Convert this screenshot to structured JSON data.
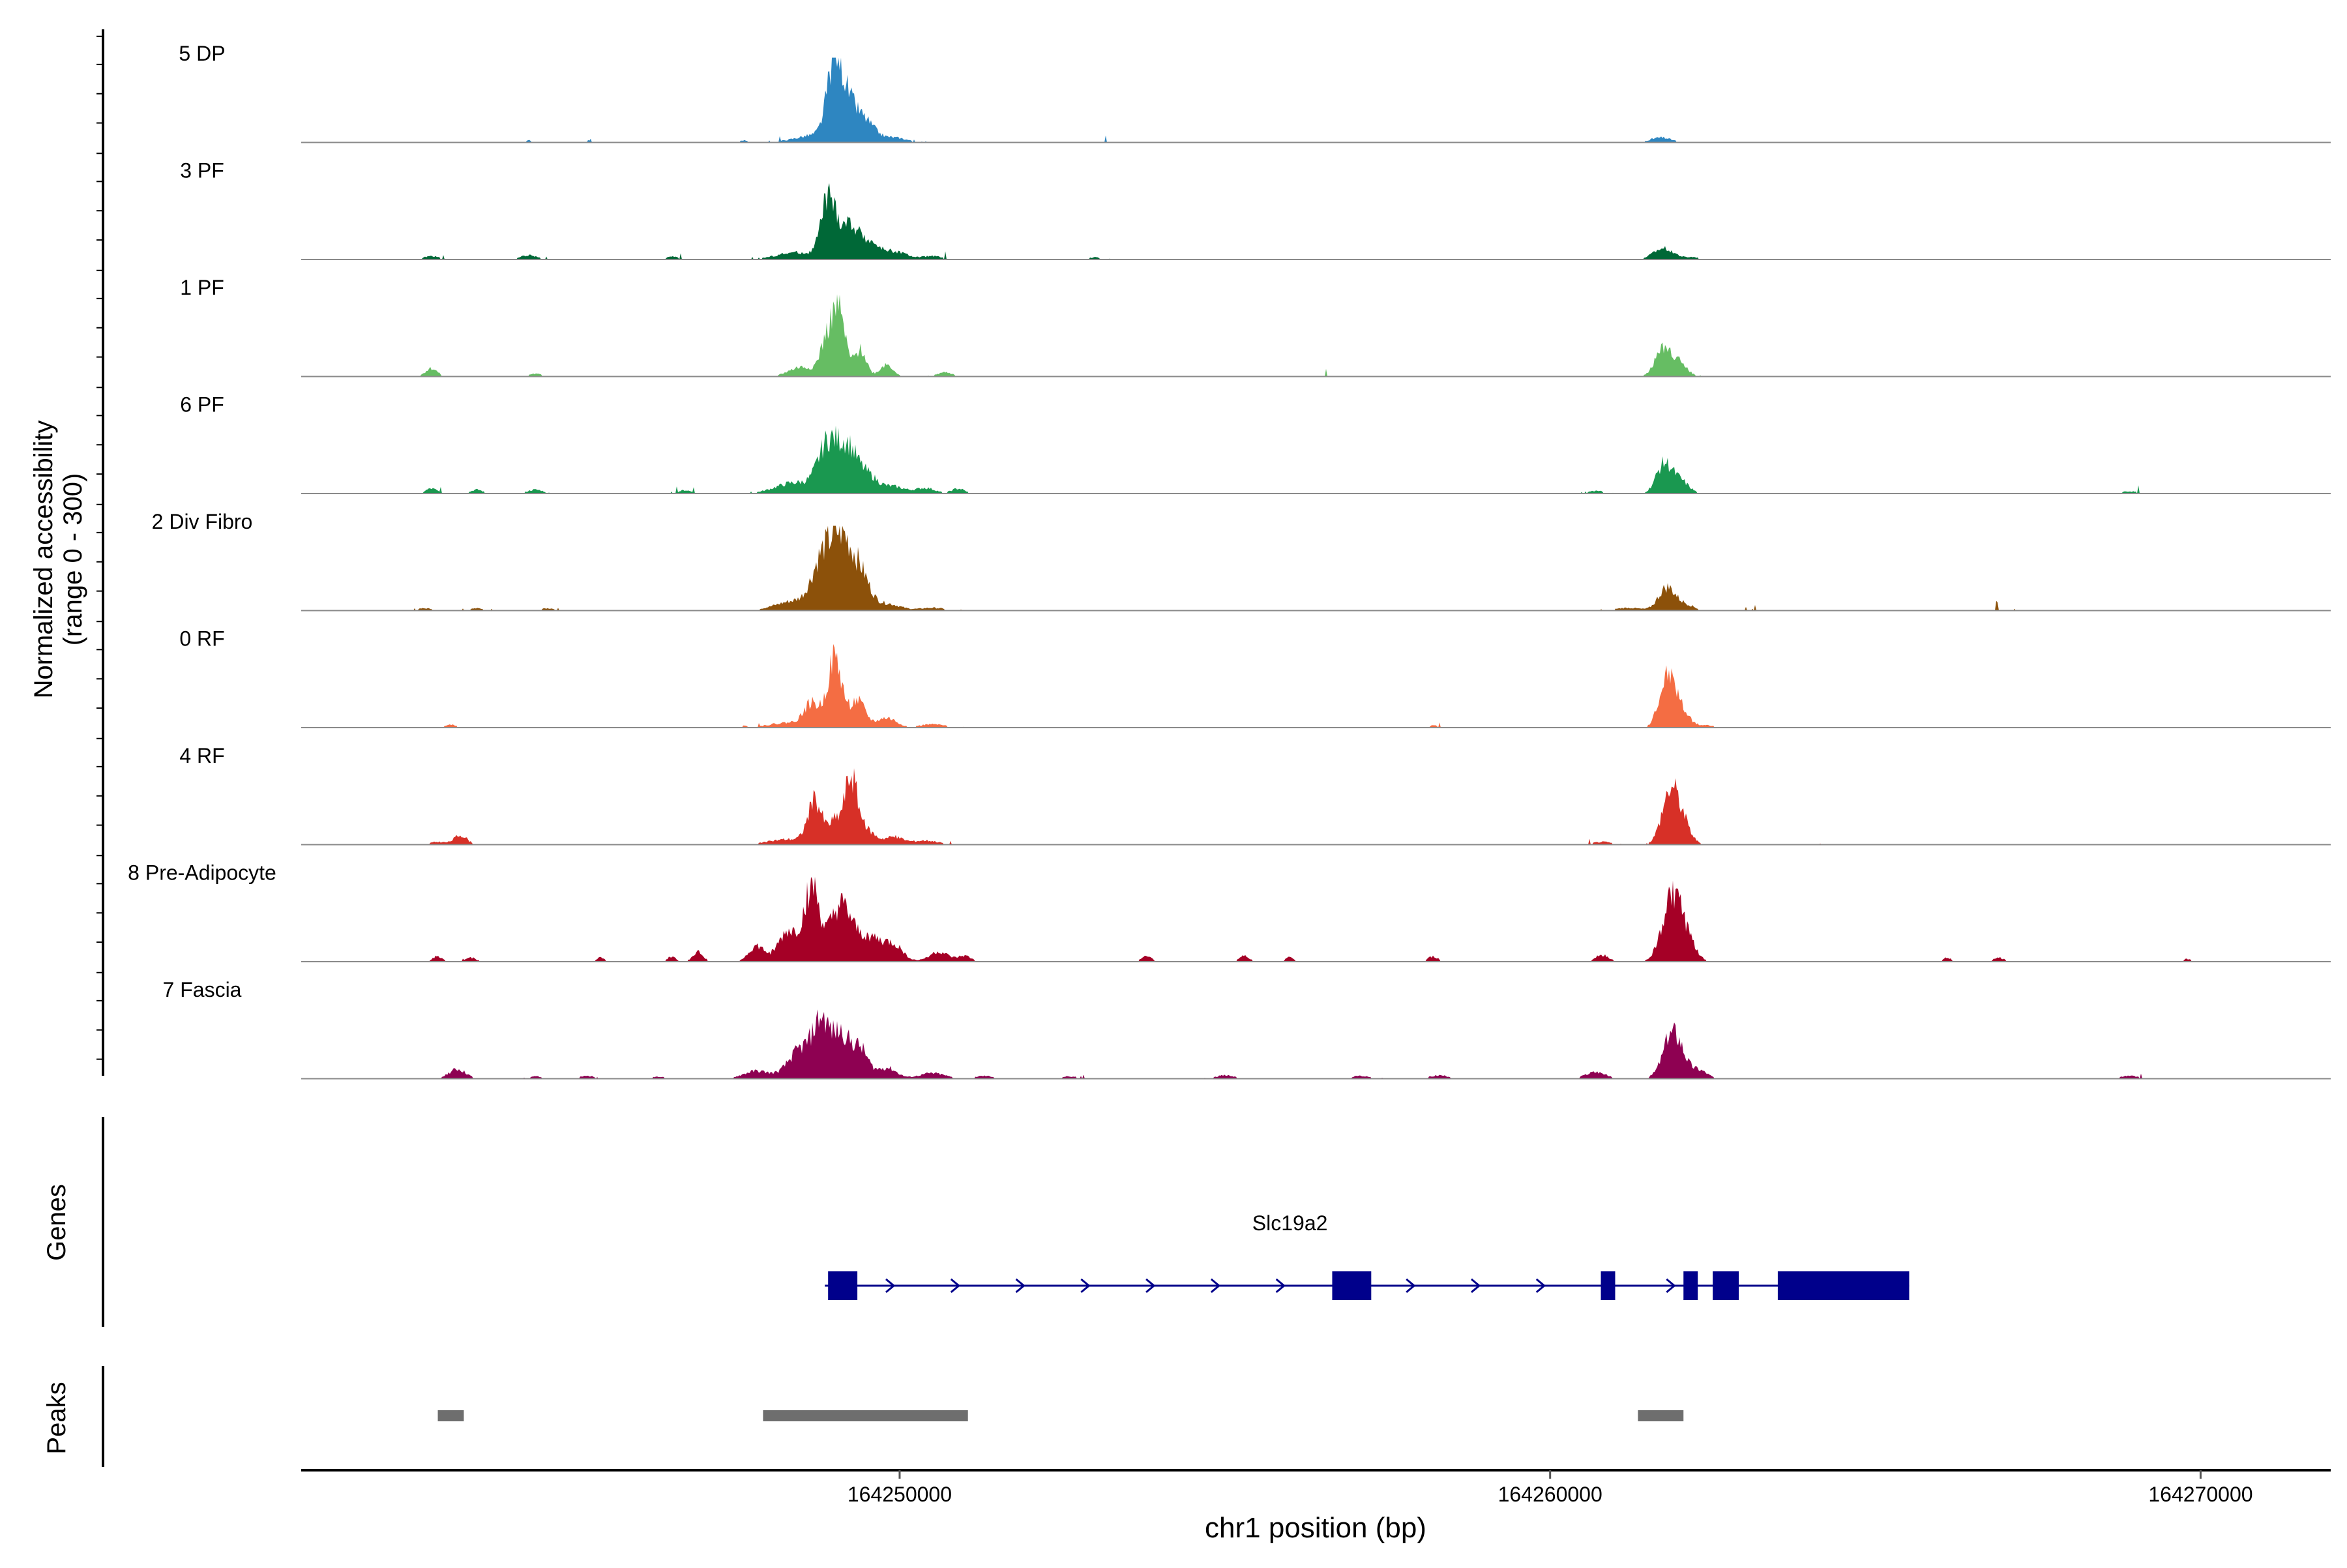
{
  "chart_data": {
    "type": "area",
    "title": "",
    "xlabel": "chr1 position (bp)",
    "ylabel_line1": "Normalized accessibility",
    "ylabel_line2": "(range 0 - 300)",
    "xlim": [
      164240800,
      164272000
    ],
    "ylim": [
      0,
      300
    ],
    "x_ticks": [
      {
        "value": 164250000,
        "label": "164250000"
      },
      {
        "value": 164260000,
        "label": "164260000"
      },
      {
        "value": 164270000,
        "label": "164270000"
      }
    ],
    "tracks": [
      {
        "name": "5 DP",
        "color": "#2E86C1",
        "peaks": [
          [
            164244300,
            8,
            60
          ],
          [
            164245300,
            6,
            60
          ],
          [
            164247600,
            8,
            80
          ],
          [
            164248800,
            30,
            350
          ],
          [
            164249000,
            255,
            110
          ],
          [
            164249200,
            130,
            160
          ],
          [
            164249500,
            55,
            140
          ],
          [
            164249900,
            18,
            200
          ],
          [
            164253200,
            6,
            80
          ],
          [
            164258700,
            5,
            60
          ],
          [
            164261700,
            18,
            160
          ],
          [
            164267800,
            5,
            60
          ]
        ]
      },
      {
        "name": "3 PF",
        "color": "#006837",
        "peaks": [
          [
            164242800,
            12,
            120
          ],
          [
            164244300,
            15,
            130
          ],
          [
            164246500,
            10,
            100
          ],
          [
            164248400,
            25,
            300
          ],
          [
            164248900,
            210,
            110
          ],
          [
            164249200,
            120,
            140
          ],
          [
            164249500,
            60,
            150
          ],
          [
            164249900,
            30,
            200
          ],
          [
            164250500,
            12,
            150
          ],
          [
            164253000,
            8,
            100
          ],
          [
            164261750,
            40,
            160
          ],
          [
            164262200,
            8,
            100
          ]
        ]
      },
      {
        "name": "1 PF",
        "color": "#66BD63",
        "peaks": [
          [
            164242800,
            30,
            90
          ],
          [
            164244400,
            10,
            100
          ],
          [
            164248500,
            35,
            200
          ],
          [
            164248850,
            90,
            90
          ],
          [
            164249050,
            245,
            110
          ],
          [
            164249400,
            95,
            90
          ],
          [
            164249800,
            45,
            100
          ],
          [
            164250700,
            15,
            120
          ],
          [
            164256500,
            6,
            100
          ],
          [
            164261750,
            100,
            130
          ],
          [
            164262000,
            40,
            120
          ]
        ]
      },
      {
        "name": "6 PF",
        "color": "#1A9850",
        "peaks": [
          [
            164242800,
            18,
            90
          ],
          [
            164243500,
            14,
            90
          ],
          [
            164244400,
            14,
            120
          ],
          [
            164246700,
            12,
            100
          ],
          [
            164248400,
            40,
            300
          ],
          [
            164248900,
            175,
            150
          ],
          [
            164249200,
            155,
            140
          ],
          [
            164249500,
            65,
            150
          ],
          [
            164249900,
            25,
            180
          ],
          [
            164250400,
            20,
            150
          ],
          [
            164250900,
            18,
            100
          ],
          [
            164260700,
            10,
            120
          ],
          [
            164261750,
            105,
            120
          ],
          [
            164262000,
            45,
            130
          ],
          [
            164268900,
            8,
            150
          ]
        ]
      },
      {
        "name": "2 Div Fibro",
        "color": "#8C510A",
        "peaks": [
          [
            164242700,
            8,
            130
          ],
          [
            164243500,
            8,
            130
          ],
          [
            164244600,
            8,
            130
          ],
          [
            164248400,
            35,
            300
          ],
          [
            164248800,
            160,
            150
          ],
          [
            164249100,
            255,
            160
          ],
          [
            164249400,
            120,
            140
          ],
          [
            164249800,
            25,
            200
          ],
          [
            164250500,
            10,
            200
          ],
          [
            164261200,
            10,
            200
          ],
          [
            164261800,
            85,
            130
          ],
          [
            164262100,
            20,
            120
          ],
          [
            164263200,
            6,
            150
          ],
          [
            164266900,
            6,
            150
          ]
        ]
      },
      {
        "name": "0 RF",
        "color": "#F46D43",
        "peaks": [
          [
            164243100,
            10,
            100
          ],
          [
            164247600,
            5,
            100
          ],
          [
            164248300,
            18,
            300
          ],
          [
            164248650,
            80,
            120
          ],
          [
            164249000,
            250,
            110
          ],
          [
            164249350,
            95,
            120
          ],
          [
            164249800,
            35,
            150
          ],
          [
            164250500,
            12,
            200
          ],
          [
            164258200,
            8,
            80
          ],
          [
            164261800,
            175,
            120
          ],
          [
            164262000,
            60,
            130
          ],
          [
            164262400,
            8,
            150
          ],
          [
            164268400,
            5,
            100
          ]
        ]
      },
      {
        "name": "4 RF",
        "color": "#D73027",
        "peaks": [
          [
            164242900,
            10,
            120
          ],
          [
            164243250,
            35,
            100
          ],
          [
            164244800,
            6,
            120
          ],
          [
            164248300,
            20,
            300
          ],
          [
            164248700,
            155,
            110
          ],
          [
            164249000,
            80,
            90
          ],
          [
            164249250,
            250,
            100
          ],
          [
            164249500,
            50,
            120
          ],
          [
            164249900,
            28,
            150
          ],
          [
            164250400,
            15,
            200
          ],
          [
            164260800,
            10,
            150
          ],
          [
            164261850,
            195,
            130
          ],
          [
            164262050,
            60,
            120
          ],
          [
            164264400,
            6,
            150
          ]
        ]
      },
      {
        "name": "8 Pre-Adipocyte",
        "color": "#A50026",
        "peaks": [
          [
            164242900,
            20,
            80
          ],
          [
            164243400,
            15,
            80
          ],
          [
            164245400,
            15,
            60
          ],
          [
            164246500,
            20,
            60
          ],
          [
            164246900,
            35,
            80
          ],
          [
            164247800,
            55,
            120
          ],
          [
            164248300,
            110,
            160
          ],
          [
            164248650,
            260,
            110
          ],
          [
            164249100,
            200,
            180
          ],
          [
            164249550,
            80,
            160
          ],
          [
            164249900,
            60,
            150
          ],
          [
            164250600,
            35,
            150
          ],
          [
            164251000,
            20,
            100
          ],
          [
            164253800,
            20,
            80
          ],
          [
            164255300,
            20,
            80
          ],
          [
            164256000,
            18,
            60
          ],
          [
            164258200,
            18,
            80
          ],
          [
            164260800,
            25,
            100
          ],
          [
            164261900,
            250,
            160
          ],
          [
            164262200,
            25,
            100
          ],
          [
            164266100,
            15,
            60
          ],
          [
            164266900,
            15,
            80
          ],
          [
            164269800,
            10,
            60
          ]
        ]
      },
      {
        "name": "7 Fascia",
        "color": "#8E0152",
        "peaks": [
          [
            164243200,
            35,
            130
          ],
          [
            164244400,
            8,
            120
          ],
          [
            164245200,
            10,
            120
          ],
          [
            164246300,
            8,
            120
          ],
          [
            164247800,
            28,
            200
          ],
          [
            164248500,
            110,
            200
          ],
          [
            164248800,
            175,
            120
          ],
          [
            164249100,
            160,
            140
          ],
          [
            164249400,
            100,
            120
          ],
          [
            164249800,
            40,
            150
          ],
          [
            164250500,
            20,
            200
          ],
          [
            164251300,
            10,
            150
          ],
          [
            164252600,
            8,
            150
          ],
          [
            164255000,
            12,
            150
          ],
          [
            164257100,
            10,
            150
          ],
          [
            164258300,
            12,
            150
          ],
          [
            164260700,
            25,
            150
          ],
          [
            164261900,
            175,
            150
          ],
          [
            164262300,
            30,
            120
          ],
          [
            164268900,
            10,
            150
          ]
        ]
      }
    ],
    "gene_track": {
      "label": "Genes",
      "gene_name": "Slc19a2",
      "color": "#00008B",
      "strand": "+",
      "span": [
        164248850,
        164265400
      ],
      "exons": [
        [
          164248900,
          164249350
        ],
        [
          164256650,
          164257250
        ],
        [
          164260780,
          164261000
        ],
        [
          164262050,
          164262270
        ],
        [
          164262500,
          164262900
        ],
        [
          164263500,
          164265520
        ]
      ]
    },
    "peaks_track": {
      "label": "Peaks",
      "color": "#6E6E6E",
      "regions": [
        [
          164242900,
          164243300
        ],
        [
          164247900,
          164251050
        ],
        [
          164261350,
          164262050
        ]
      ]
    }
  }
}
